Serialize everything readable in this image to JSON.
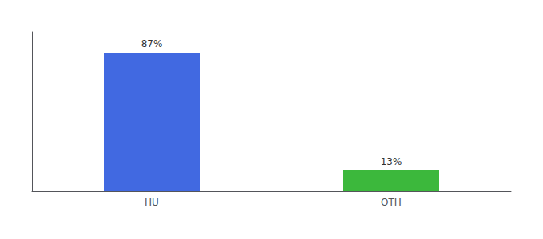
{
  "chart_data": {
    "type": "bar",
    "categories": [
      "HU",
      "OTH"
    ],
    "values": [
      87,
      13
    ],
    "value_labels": [
      "87%",
      "13%"
    ],
    "colors": [
      "#4169e1",
      "#3cb83c"
    ],
    "ylim": [
      0,
      100
    ],
    "data_labels": true,
    "tick_labels": "x",
    "grid": false
  }
}
